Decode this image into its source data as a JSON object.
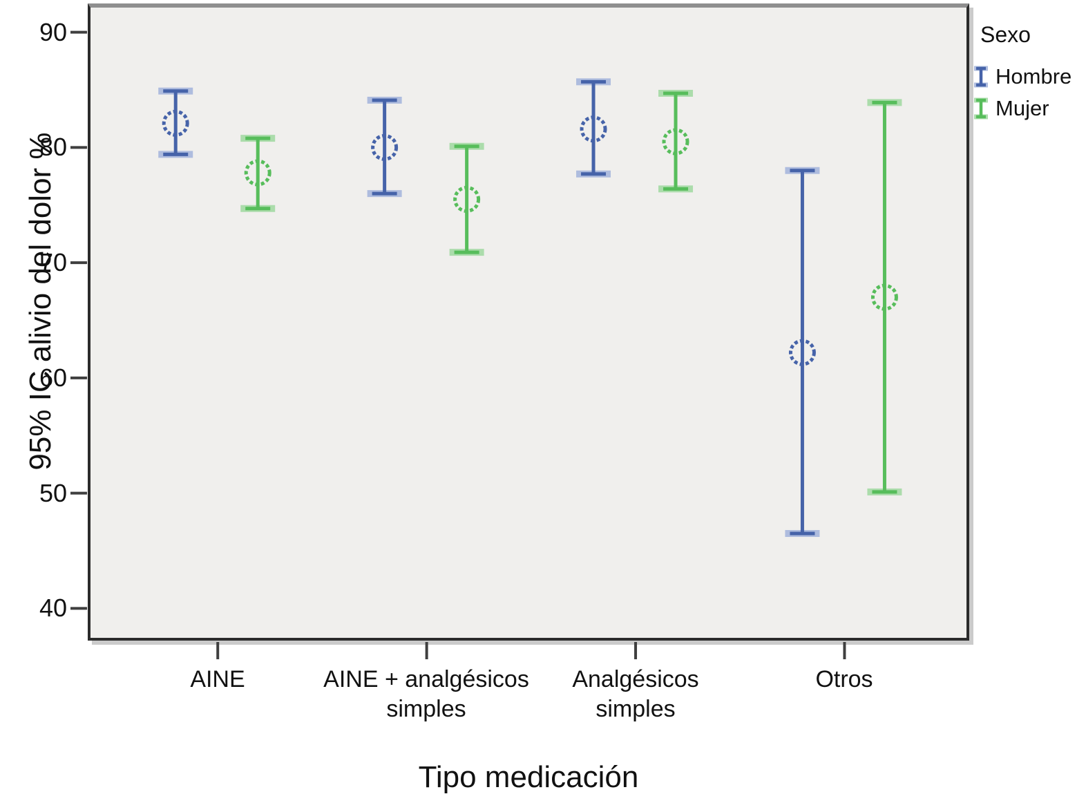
{
  "chart_data": {
    "type": "errorbar",
    "title": "",
    "xlabel": "Tipo medicación",
    "ylabel": "95% IC alivio del dolor %",
    "categories": [
      "AINE",
      "AINE + analgésicos simples",
      "Analgésicos simples",
      "Otros"
    ],
    "yticks": [
      90,
      80,
      70,
      60,
      50,
      40
    ],
    "ylim": [
      37.2,
      92.5
    ],
    "grid": false,
    "plot_bg": "#f0efed",
    "marker": "open-dashed-circle",
    "legend": {
      "title": "Sexo",
      "position": "right"
    },
    "series": [
      {
        "name": "Hombre",
        "color": "#4663a9",
        "color_light": "#aebcde",
        "means": [
          82.1,
          80.0,
          81.6,
          62.2
        ],
        "ci_low": [
          79.4,
          76.0,
          77.7,
          46.5
        ],
        "ci_high": [
          84.9,
          84.1,
          85.7,
          78.0
        ]
      },
      {
        "name": "Mujer",
        "color": "#57bd5b",
        "color_light": "#abdcab",
        "means": [
          77.8,
          75.5,
          80.5,
          67.0
        ],
        "ci_low": [
          74.7,
          70.9,
          76.4,
          50.1
        ],
        "ci_high": [
          80.8,
          80.1,
          84.7,
          83.9
        ]
      }
    ]
  }
}
